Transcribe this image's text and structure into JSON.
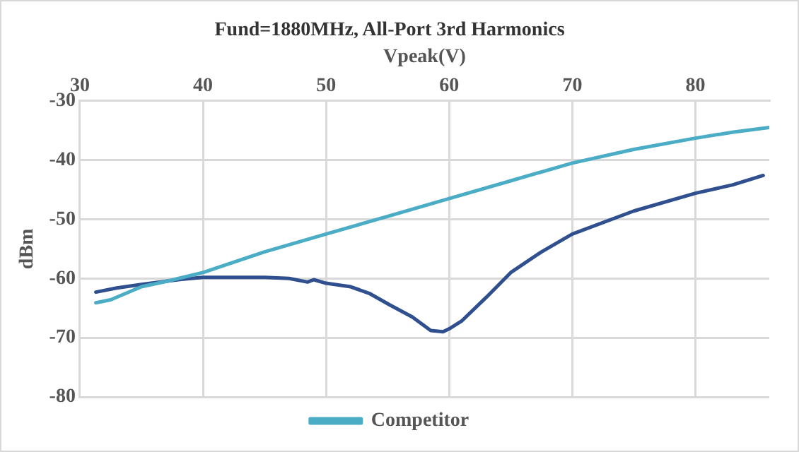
{
  "chart_data": {
    "type": "line",
    "title": "Fund=1880MHz, All-Port 3rd Harmonics",
    "xlabel": "Vpeak(V)",
    "ylabel": "dBm",
    "xlim": [
      30,
      86
    ],
    "xticks": [
      30,
      40,
      50,
      60,
      70,
      80
    ],
    "ylim": [
      -80,
      -30
    ],
    "yticks": [
      -80,
      -70,
      -60,
      -50,
      -40,
      -30
    ],
    "grid": true,
    "legend": "bottom",
    "marker": "none",
    "line_style": "solid",
    "series": [
      {
        "name": "Competitor",
        "color": "#4bacc6",
        "x": [
          31.3,
          32.5,
          35,
          37,
          40,
          45,
          50,
          55,
          60,
          65,
          70,
          75,
          80,
          83,
          86
        ],
        "values": [
          -64.1,
          -63.6,
          -61.4,
          -60.5,
          -59,
          -55.5,
          -52.5,
          -49.5,
          -46.5,
          -43.5,
          -40.5,
          -38.2,
          -36.3,
          -35.3,
          -34.5
        ]
      },
      {
        "color": "#2f4f8f",
        "x": [
          31.3,
          33,
          35,
          38,
          40,
          45,
          47,
          48.5,
          49,
          50,
          52,
          53.5,
          55.2,
          57,
          58.5,
          59.5,
          60,
          61,
          63,
          65,
          67.5,
          70,
          75,
          80,
          83,
          85.5
        ],
        "values": [
          -62.3,
          -61.6,
          -61,
          -60.2,
          -59.8,
          -59.8,
          -60,
          -60.6,
          -60.2,
          -60.8,
          -61.4,
          -62.5,
          -64.5,
          -66.5,
          -68.8,
          -69,
          -68.5,
          -67.2,
          -63.2,
          -59,
          -55.5,
          -52.5,
          -48.6,
          -45.6,
          -44.2,
          -42.6
        ]
      }
    ]
  }
}
